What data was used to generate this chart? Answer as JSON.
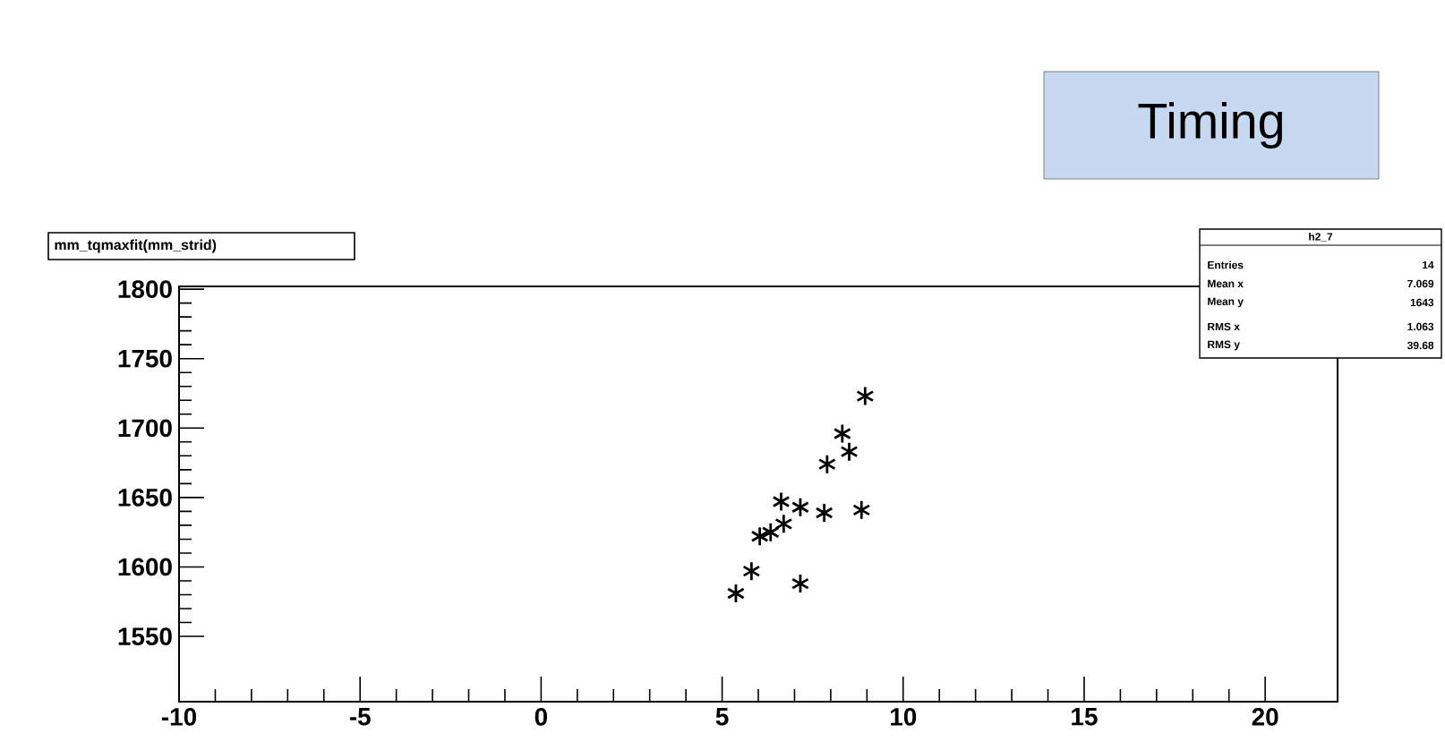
{
  "chart_data": {
    "type": "scatter",
    "title": "mm_tqmaxfit(mm_strid)",
    "annotations": [
      "Timing",
      "h2_7",
      "Entries",
      "14",
      "Mean x",
      "7.069",
      "Mean y",
      "1643",
      "RMS x",
      "1.063",
      "RMS y",
      "39.68"
    ],
    "x": [
      8.95,
      8.32,
      8.51,
      7.9,
      6.63,
      7.16,
      7.82,
      8.85,
      6.7,
      6.34,
      6.04,
      5.81,
      5.38,
      7.16
    ],
    "values": [
      1723,
      1696,
      1683,
      1674,
      1647,
      1643,
      1639,
      1641,
      1631,
      1625,
      1622,
      1597,
      1581,
      1588
    ],
    "color": "#000000",
    "marker": "cross",
    "grid": false,
    "xlim": [
      -10,
      22
    ],
    "ylim": [
      1503,
      1802
    ],
    "xticks": [
      -10,
      -5,
      0,
      5,
      10,
      15,
      20
    ],
    "yticks": [
      1550,
      1600,
      1650,
      1700,
      1750,
      1800
    ]
  }
}
